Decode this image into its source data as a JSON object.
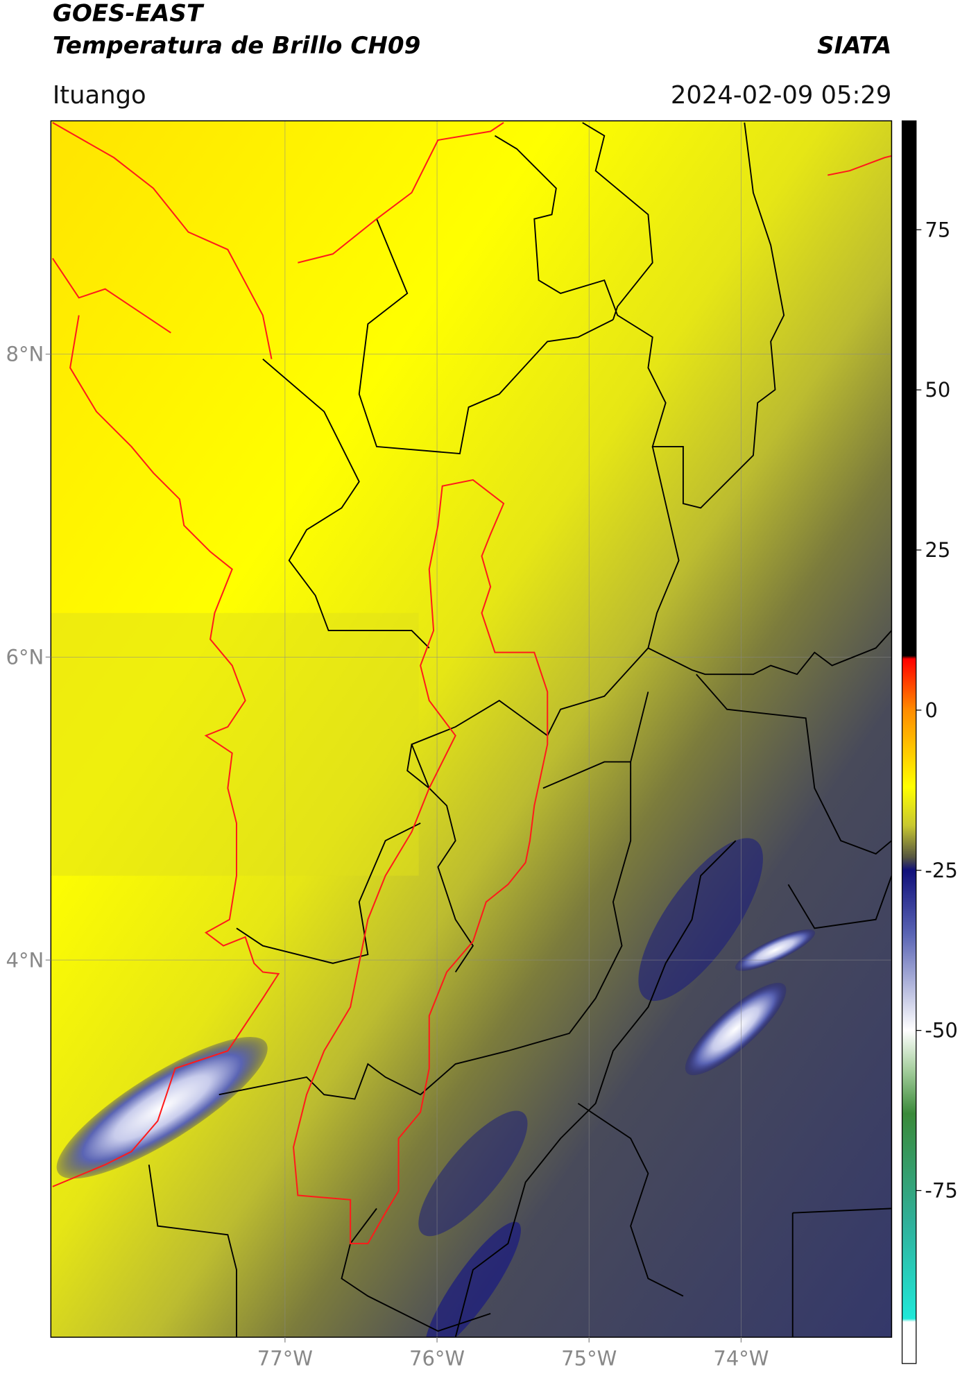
{
  "map": {
    "title": "GOES-EAST",
    "subtitle": "Temperatura de Brillo CH09",
    "source": "SIATA",
    "location": "Ituango",
    "timestamp": "2024-02-09 05:29",
    "xlim": [
      -78.54,
      -73.01
    ],
    "ylim": [
      1.51,
      9.54
    ],
    "xticks": [
      {
        "value": -77,
        "label": "77°W"
      },
      {
        "value": -76,
        "label": "76°W"
      },
      {
        "value": -75,
        "label": "75°W"
      },
      {
        "value": -74,
        "label": "74°W"
      }
    ],
    "yticks": [
      {
        "value": 8,
        "label": "8°N"
      },
      {
        "value": 6,
        "label": "6°N"
      },
      {
        "value": 4,
        "label": "4°N"
      }
    ],
    "grid": true,
    "colorbar": {
      "lim": [
        -102,
        92
      ],
      "ticks": [
        75,
        50,
        25,
        0,
        -25,
        -50,
        -75
      ],
      "stops": [
        {
          "value": 92,
          "color": "#000000"
        },
        {
          "value": 8.5,
          "color": "#000000"
        },
        {
          "value": 8,
          "color": "#ff0000"
        },
        {
          "value": 0,
          "color": "#ff8c00"
        },
        {
          "value": -12,
          "color": "#ffff00"
        },
        {
          "value": -18,
          "color": "#c8c830"
        },
        {
          "value": -23,
          "color": "#555540"
        },
        {
          "value": -25,
          "color": "#10107a"
        },
        {
          "value": -35,
          "color": "#5a64b4"
        },
        {
          "value": -50,
          "color": "#ffffff"
        },
        {
          "value": -56,
          "color": "#a8d0a0"
        },
        {
          "value": -63,
          "color": "#3a8a3a"
        },
        {
          "value": -80,
          "color": "#30b09a"
        },
        {
          "value": -95,
          "color": "#20e8d8"
        },
        {
          "value": -95.5,
          "color": "#ffffff"
        },
        {
          "value": -102,
          "color": "#ffffff"
        }
      ]
    }
  }
}
